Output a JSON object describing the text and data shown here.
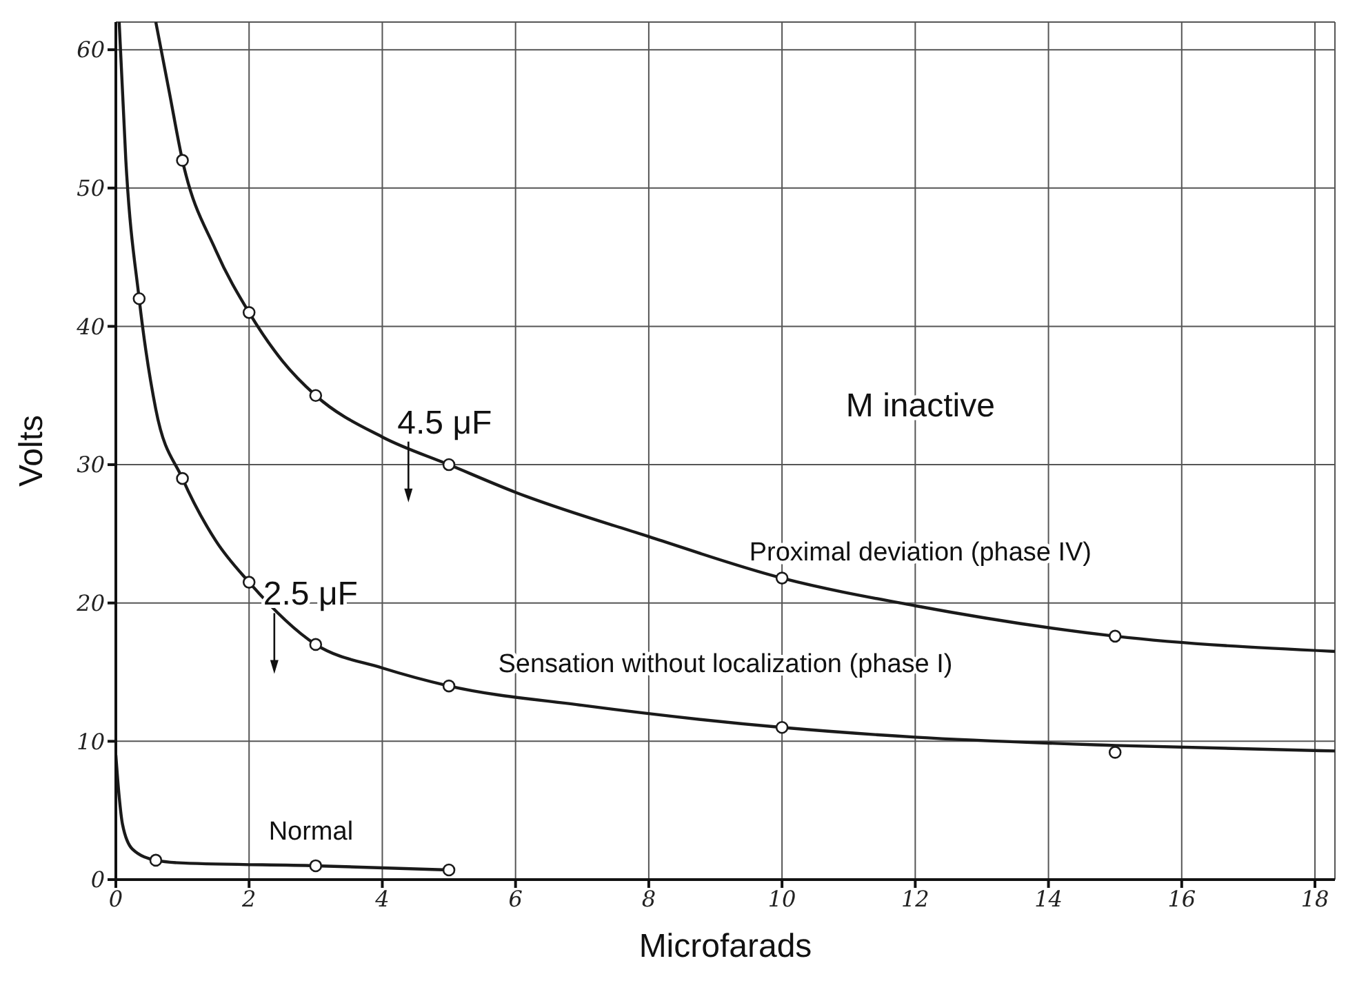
{
  "chart_data": {
    "type": "line",
    "xlabel": "Microfarads",
    "ylabel": "Volts",
    "xlim": [
      0,
      18.3
    ],
    "xticks": [
      0,
      2,
      4,
      6,
      8,
      10,
      12,
      14,
      16,
      18
    ],
    "ylim": [
      0,
      62
    ],
    "yticks": [
      0,
      10,
      20,
      30,
      40,
      50,
      60
    ],
    "grid": true,
    "series": [
      {
        "marker": "none",
        "color": "#1a1a1a",
        "x": [
          0.6,
          0.8,
          1,
          1.5,
          2,
          2.5,
          3,
          4,
          5,
          6,
          8,
          10,
          12,
          15,
          18.3
        ],
        "values": [
          62,
          57,
          52,
          45.5,
          41,
          37.5,
          35,
          32,
          30,
          28,
          24.8,
          21.8,
          19.8,
          17.6,
          16.5
        ]
      },
      {
        "type": "scatter",
        "marker": "circle",
        "color": "#1a1a1a",
        "x": [
          1,
          2,
          3,
          5,
          10,
          15
        ],
        "values": [
          52,
          41,
          35,
          30,
          21.8,
          17.6
        ]
      },
      {
        "marker": "none",
        "color": "#1a1a1a",
        "x": [
          0.05,
          0.15,
          0.35,
          0.6,
          1,
          1.5,
          2,
          3,
          4,
          5,
          7,
          10,
          12,
          15,
          18.3
        ],
        "values": [
          62,
          52,
          42,
          34,
          29,
          24.5,
          21.5,
          17,
          15.3,
          14,
          12.6,
          11,
          10.3,
          9.7,
          9.3
        ]
      },
      {
        "type": "scatter",
        "marker": "circle",
        "color": "#1a1a1a",
        "x": [
          0.35,
          1,
          2,
          3,
          5,
          10,
          15
        ],
        "values": [
          42,
          29,
          21.5,
          17,
          14,
          11,
          9.2
        ]
      },
      {
        "marker": "none",
        "color": "#1a1a1a",
        "x": [
          0,
          0.05,
          0.1,
          0.25,
          0.6,
          1,
          3,
          5
        ],
        "values": [
          9,
          6,
          4,
          2.2,
          1.4,
          1.2,
          1,
          0.7
        ]
      },
      {
        "type": "scatter",
        "marker": "circle",
        "color": "#1a1a1a",
        "x": [
          0.6,
          3,
          5
        ],
        "values": [
          1.4,
          1,
          0.7
        ]
      }
    ],
    "annotations": [
      "4.5 μF",
      "2.5 μF",
      "Proximal deviation (phase IV)",
      "Sensation without localization (phase I)",
      "Normal",
      "M inactive"
    ]
  }
}
